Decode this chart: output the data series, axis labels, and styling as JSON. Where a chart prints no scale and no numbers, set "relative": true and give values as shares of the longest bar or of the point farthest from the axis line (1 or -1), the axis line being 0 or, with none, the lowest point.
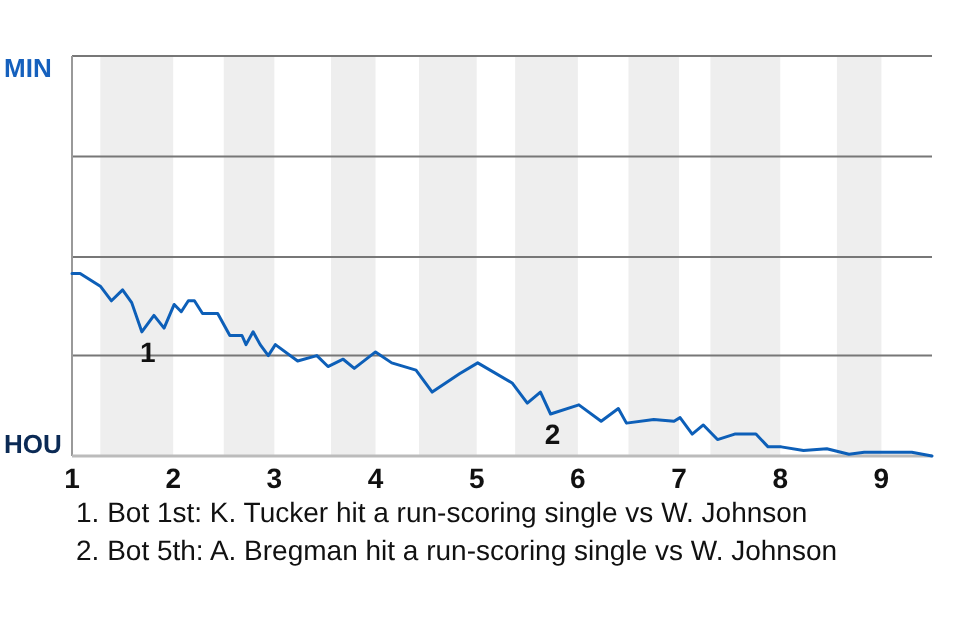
{
  "chart_data": {
    "type": "line",
    "relative": true,
    "x": [
      1,
      1.08,
      1.28,
      1.39,
      1.5,
      1.59,
      1.69,
      1.81,
      1.91,
      2.01,
      2.08,
      2.15,
      2.21,
      2.29,
      2.44,
      2.56,
      2.68,
      2.72,
      2.79,
      2.86,
      2.94,
      3.01,
      3.23,
      3.42,
      3.53,
      3.68,
      3.79,
      4,
      4.16,
      4.4,
      4.56,
      4.83,
      5.01,
      5.35,
      5.5,
      5.63,
      5.73,
      6.01,
      6.23,
      6.4,
      6.48,
      6.75,
      6.95,
      7.01,
      7.13,
      7.24,
      7.38,
      7.55,
      7.76,
      7.88,
      8.01,
      8.23,
      8.46,
      8.68,
      8.83,
      9.3,
      9.5
    ],
    "series": [
      {
        "color": "#0d5fb8",
        "values": [
          1,
          1,
          0.93,
          0.85,
          0.91,
          0.84,
          0.68,
          0.77,
          0.7,
          0.83,
          0.79,
          0.85,
          0.85,
          0.78,
          0.78,
          0.66,
          0.66,
          0.61,
          0.68,
          0.61,
          0.55,
          0.61,
          0.52,
          0.55,
          0.49,
          0.53,
          0.48,
          0.57,
          0.51,
          0.47,
          0.35,
          0.45,
          0.51,
          0.4,
          0.29,
          0.35,
          0.23,
          0.28,
          0.19,
          0.26,
          0.18,
          0.2,
          0.19,
          0.21,
          0.12,
          0.17,
          0.09,
          0.12,
          0.12,
          0.05,
          0.05,
          0.03,
          0.04,
          0.01,
          0.02,
          0.02,
          0
        ]
      }
    ],
    "xlim": [
      1,
      9.5
    ],
    "xticks": [
      1,
      2,
      3,
      4,
      5,
      6,
      7,
      8,
      9
    ],
    "ref_lines": [
      {
        "axis": "y",
        "value": 0.55,
        "color": "#777777"
      },
      {
        "axis": "y",
        "value": 1.09,
        "color": "#777777"
      },
      {
        "axis": "y",
        "value": 1.64,
        "color": "#777777"
      },
      {
        "axis": "y",
        "value": 2.19,
        "color": "#777777"
      }
    ],
    "bands": [
      {
        "axis": "x",
        "from": 1.28,
        "to": 2,
        "color": "#eeeeee"
      },
      {
        "axis": "x",
        "from": 2.5,
        "to": 3,
        "color": "#eeeeee"
      },
      {
        "axis": "x",
        "from": 3.56,
        "to": 4,
        "color": "#eeeeee"
      },
      {
        "axis": "x",
        "from": 4.43,
        "to": 5,
        "color": "#eeeeee"
      },
      {
        "axis": "x",
        "from": 5.38,
        "to": 6,
        "color": "#eeeeee"
      },
      {
        "axis": "x",
        "from": 6.5,
        "to": 7,
        "color": "#eeeeee"
      },
      {
        "axis": "x",
        "from": 7.31,
        "to": 8,
        "color": "#eeeeee"
      },
      {
        "axis": "x",
        "from": 8.56,
        "to": 9,
        "color": "#eeeeee"
      }
    ],
    "annotations": [
      "MIN",
      "HOU",
      {
        "text": "1",
        "x": 1.75,
        "y": 0.68
      },
      {
        "text": "2",
        "x": 5.75,
        "y": 0.23
      },
      "1. Bot 1st: K. Tucker hit a run-scoring single vs W. Johnson",
      "2. Bot 5th: A. Bregman hit a run-scoring single vs W. Johnson"
    ]
  }
}
